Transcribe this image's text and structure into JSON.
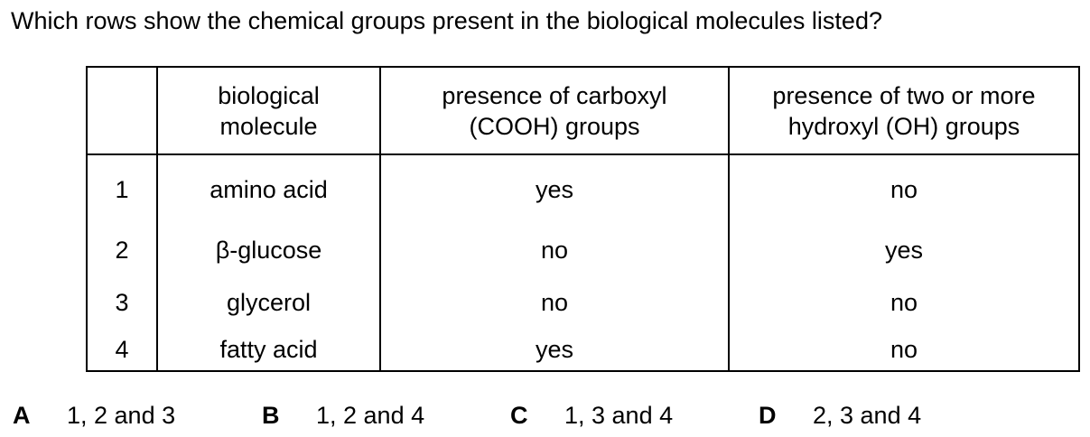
{
  "question": "Which rows show the chemical groups present in the biological molecules listed?",
  "table": {
    "headers": [
      {
        "line1": "",
        "line2": ""
      },
      {
        "line1": "biological",
        "line2": "molecule"
      },
      {
        "line1": "presence of carboxyl",
        "line2": "(COOH) groups"
      },
      {
        "line1": "presence of two or more",
        "line2": "hydroxyl (OH) groups"
      }
    ],
    "rows": [
      {
        "num": "1",
        "molecule": "amino acid",
        "carboxyl": "yes",
        "hydroxyl": "no"
      },
      {
        "num": "2",
        "molecule": "β-glucose",
        "carboxyl": "no",
        "hydroxyl": "yes"
      },
      {
        "num": "3",
        "molecule": "glycerol",
        "carboxyl": "no",
        "hydroxyl": "no"
      },
      {
        "num": "4",
        "molecule": "fatty acid",
        "carboxyl": "yes",
        "hydroxyl": "no"
      }
    ]
  },
  "options": [
    {
      "letter": "A",
      "text": "1, 2 and 3"
    },
    {
      "letter": "B",
      "text": "1, 2 and 4"
    },
    {
      "letter": "C",
      "text": "1, 3 and 4"
    },
    {
      "letter": "D",
      "text": "2, 3 and 4"
    }
  ]
}
